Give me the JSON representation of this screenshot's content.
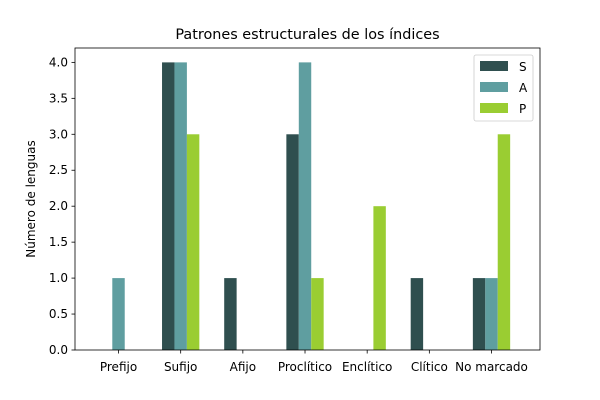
{
  "chart_data": {
    "type": "bar",
    "title": "Patrones estructurales de los índices",
    "xlabel": "",
    "ylabel": "Número de lenguas",
    "categories": [
      "Prefijo",
      "Sufijo",
      "Afijo",
      "Proclítico",
      "Enclítico",
      "Clítico",
      "No marcado"
    ],
    "series": [
      {
        "name": "S",
        "color": "#2f4f4f",
        "values": [
          0,
          4,
          1,
          3,
          0,
          1,
          1
        ]
      },
      {
        "name": "A",
        "color": "#5f9ea0",
        "values": [
          1,
          4,
          0,
          4,
          0,
          0,
          1
        ]
      },
      {
        "name": "P",
        "color": "#9acd32",
        "values": [
          0,
          3,
          0,
          1,
          2,
          0,
          3
        ]
      }
    ],
    "ylim": [
      0,
      4.2
    ],
    "yticks": [
      "0.0",
      "0.5",
      "1.0",
      "1.5",
      "2.0",
      "2.5",
      "3.0",
      "3.5",
      "4.0"
    ],
    "grid": false,
    "legend_position": "top-right"
  }
}
